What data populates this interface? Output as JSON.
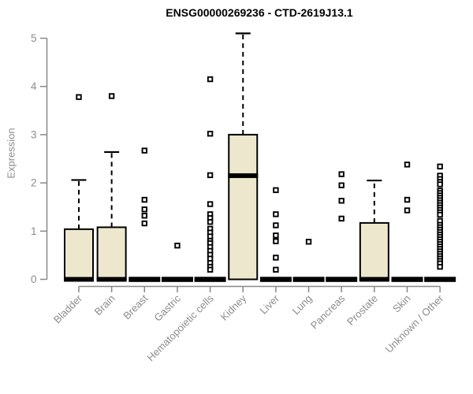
{
  "title": "ENSG00000269236 - CTD-2619J13.1",
  "chart_data": {
    "type": "boxplot",
    "title": "ENSG00000269236 - CTD-2619J13.1",
    "xlabel": "",
    "ylabel": "Expression",
    "ylim": [
      0,
      5
    ],
    "yticks": [
      0,
      1,
      2,
      3,
      4,
      5
    ],
    "grid": false,
    "legend": "none",
    "categories": [
      "Bladder",
      "Brain",
      "Breast",
      "Gastric",
      "Hematopoietic cells",
      "Kidney",
      "Liver",
      "Lung",
      "Pancreas",
      "Prostate",
      "Skin",
      "Unknown / Other"
    ],
    "boxes": [
      {
        "category": "Bladder",
        "q1": 0,
        "median": 0,
        "q3": 1.04,
        "whisker_low": 0,
        "whisker_high": 2.06,
        "outliers": [
          3.78
        ]
      },
      {
        "category": "Brain",
        "q1": 0,
        "median": 0,
        "q3": 1.08,
        "whisker_low": 0,
        "whisker_high": 2.64,
        "outliers": [
          3.8
        ]
      },
      {
        "category": "Breast",
        "q1": 0,
        "median": 0,
        "q3": 0,
        "whisker_low": 0,
        "whisker_high": 0,
        "outliers": [
          2.67,
          1.65,
          1.45,
          1.32,
          1.16
        ]
      },
      {
        "category": "Gastric",
        "q1": 0,
        "median": 0,
        "q3": 0,
        "whisker_low": 0,
        "whisker_high": 0,
        "outliers": [
          0.7
        ]
      },
      {
        "category": "Hematopoietic cells",
        "q1": 0,
        "median": 0,
        "q3": 0,
        "whisker_low": 0,
        "whisker_high": 0,
        "outliers": [
          4.15,
          3.02,
          2.16,
          1.56,
          1.35,
          1.27,
          1.19,
          1.05,
          0.97,
          0.89,
          0.8,
          0.75,
          0.67,
          0.59,
          0.51,
          0.43,
          0.34,
          0.26,
          0.2
        ]
      },
      {
        "category": "Kidney",
        "q1": 0,
        "median": 2.15,
        "q3": 3.0,
        "whisker_low": 0,
        "whisker_high": 5.1,
        "outliers": []
      },
      {
        "category": "Liver",
        "q1": 0,
        "median": 0,
        "q3": 0,
        "whisker_low": 0,
        "whisker_high": 0,
        "outliers": [
          1.85,
          1.35,
          1.12,
          0.91,
          0.79,
          0.45,
          0.2
        ]
      },
      {
        "category": "Lung",
        "q1": 0,
        "median": 0,
        "q3": 0,
        "whisker_low": 0,
        "whisker_high": 0,
        "outliers": [
          0.78
        ]
      },
      {
        "category": "Pancreas",
        "q1": 0,
        "median": 0,
        "q3": 0,
        "whisker_low": 0,
        "whisker_high": 0,
        "outliers": [
          2.18,
          1.95,
          1.63,
          1.26
        ]
      },
      {
        "category": "Prostate",
        "q1": 0,
        "median": 0,
        "q3": 1.17,
        "whisker_low": 0,
        "whisker_high": 2.05,
        "outliers": []
      },
      {
        "category": "Skin",
        "q1": 0,
        "median": 0,
        "q3": 0,
        "whisker_low": 0,
        "whisker_high": 0,
        "outliers": [
          2.38,
          1.65,
          1.43
        ]
      },
      {
        "category": "Unknown / Other",
        "q1": 0,
        "median": 0,
        "q3": 0,
        "whisker_low": 0,
        "whisker_high": 0,
        "outliers": [
          2.34,
          2.15,
          2.08,
          2.02,
          1.97,
          1.84,
          1.79,
          1.74,
          1.69,
          1.64,
          1.59,
          1.54,
          1.49,
          1.44,
          1.39,
          1.34,
          1.21,
          1.13,
          1.08,
          1.03,
          0.98,
          0.93,
          0.88,
          0.83,
          0.78,
          0.73,
          0.68,
          0.63,
          0.58,
          0.53,
          0.48,
          0.43,
          0.38,
          0.33,
          0.26
        ]
      }
    ],
    "colors": {
      "box_fill": "#ede8cd",
      "box_border": "#000000",
      "axis": "#888888",
      "tick_label": "#8c8c8c",
      "title": "#000000"
    }
  }
}
